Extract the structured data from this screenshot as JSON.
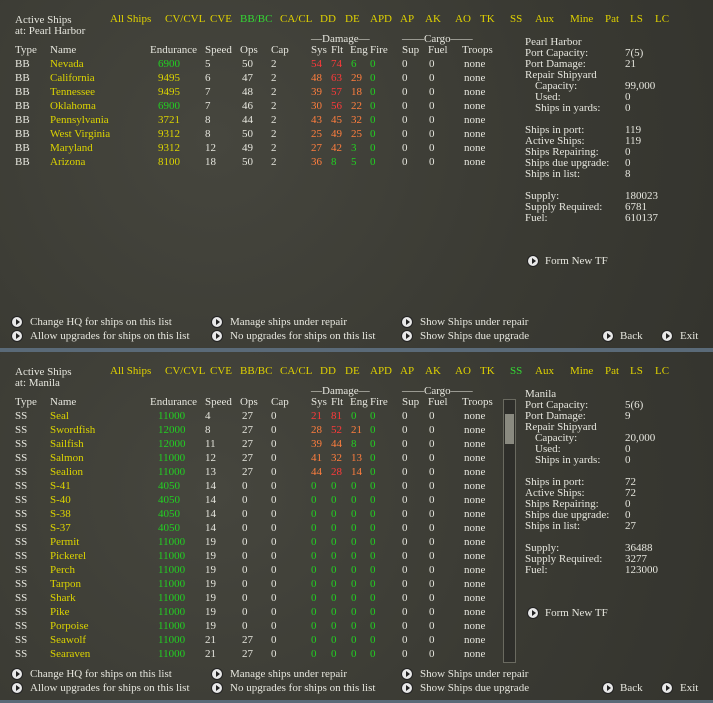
{
  "panels": [
    {
      "title": "Active Ships",
      "location": "at: Pearl Harbor",
      "filters": [
        {
          "label": "All Ships"
        },
        {
          "label": "CV/CVL"
        },
        {
          "label": "CVE"
        },
        {
          "label": "BB/BC",
          "active": true
        },
        {
          "label": "CA/CL"
        },
        {
          "label": "DD"
        },
        {
          "label": "DE"
        },
        {
          "label": "APD"
        },
        {
          "label": "AP"
        },
        {
          "label": "AK"
        },
        {
          "label": "AO"
        },
        {
          "label": "TK"
        },
        {
          "label": "SS"
        },
        {
          "label": "Aux"
        },
        {
          "label": "Mine"
        },
        {
          "label": "Pat"
        },
        {
          "label": "LS"
        },
        {
          "label": "LC"
        }
      ],
      "groups": {
        "damage": "—Damage—",
        "cargo": "——Cargo——"
      },
      "headers": {
        "type": "Type",
        "name": "Name",
        "endurance": "Endurance",
        "speed": "Speed",
        "ops": "Ops",
        "cap": "Cap",
        "sys": "Sys",
        "flt": "Flt",
        "eng": "Eng",
        "fire": "Fire",
        "sup": "Sup",
        "fuel": "Fuel",
        "troops": "Troops"
      },
      "rows": [
        {
          "type": "BB",
          "name": "Nevada",
          "endurance": 6900,
          "speed": 5,
          "ops": 50,
          "cap": 2,
          "sys": 54,
          "flt": 74,
          "eng": 6,
          "fire": 0,
          "sup": 0,
          "fuel": 0,
          "troops": "none",
          "colors": {
            "sys": "r",
            "flt": "r"
          }
        },
        {
          "type": "BB",
          "name": "California",
          "endurance": 9495,
          "speed": 6,
          "ops": 47,
          "cap": 2,
          "sys": 48,
          "flt": 63,
          "eng": 29,
          "fire": 0,
          "sup": 0,
          "fuel": 0,
          "troops": "none",
          "colors": {
            "endurance": "y",
            "sys": "o",
            "flt": "r",
            "eng": "o"
          }
        },
        {
          "type": "BB",
          "name": "Tennessee",
          "endurance": 9495,
          "speed": 7,
          "ops": 48,
          "cap": 2,
          "sys": 39,
          "flt": 57,
          "eng": 18,
          "fire": 0,
          "sup": 0,
          "fuel": 0,
          "troops": "none",
          "colors": {
            "endurance": "y",
            "sys": "o",
            "flt": "r",
            "eng": "o"
          }
        },
        {
          "type": "BB",
          "name": "Oklahoma",
          "endurance": 6900,
          "speed": 7,
          "ops": 46,
          "cap": 2,
          "sys": 30,
          "flt": 56,
          "eng": 22,
          "fire": 0,
          "sup": 0,
          "fuel": 0,
          "troops": "none",
          "colors": {
            "sys": "o",
            "flt": "r",
            "eng": "o"
          }
        },
        {
          "type": "BB",
          "name": "Pennsylvania",
          "endurance": 3721,
          "speed": 8,
          "ops": 44,
          "cap": 2,
          "sys": 43,
          "flt": 45,
          "eng": 32,
          "fire": 0,
          "sup": 0,
          "fuel": 0,
          "troops": "none",
          "colors": {
            "endurance": "y",
            "sys": "o",
            "flt": "o",
            "eng": "o"
          }
        },
        {
          "type": "BB",
          "name": "West Virginia",
          "endurance": 9312,
          "speed": 8,
          "ops": 50,
          "cap": 2,
          "sys": 25,
          "flt": 49,
          "eng": 25,
          "fire": 0,
          "sup": 0,
          "fuel": 0,
          "troops": "none",
          "colors": {
            "endurance": "y",
            "sys": "o",
            "flt": "o",
            "eng": "o"
          }
        },
        {
          "type": "BB",
          "name": "Maryland",
          "endurance": 9312,
          "speed": 12,
          "ops": 49,
          "cap": 2,
          "sys": 27,
          "flt": 42,
          "eng": 3,
          "fire": 0,
          "sup": 0,
          "fuel": 0,
          "troops": "none",
          "colors": {
            "endurance": "y",
            "sys": "o",
            "flt": "o"
          }
        },
        {
          "type": "BB",
          "name": "Arizona",
          "endurance": 8100,
          "speed": 18,
          "ops": 50,
          "cap": 2,
          "sys": 36,
          "flt": 8,
          "eng": 5,
          "fire": 0,
          "sup": 0,
          "fuel": 0,
          "troops": "none",
          "colors": {
            "endurance": "y",
            "sys": "o"
          }
        }
      ],
      "port": "Pearl Harbor",
      "info": [
        [
          {
            "label": "Port Capacity:",
            "value": "7(5)"
          },
          {
            "label": "Port Damage:",
            "value": 21
          },
          {
            "label": "Repair Shipyard"
          },
          {
            "label": "Capacity:",
            "value": "99,000",
            "indent": true
          },
          {
            "label": "Used:",
            "value": 0,
            "indent": true
          },
          {
            "label": "Ships in yards:",
            "value": 0,
            "indent": true
          }
        ],
        [
          {
            "label": "Ships in port:",
            "value": 119
          },
          {
            "label": "Active Ships:",
            "value": 119
          },
          {
            "label": "Ships Repairing:",
            "value": 0
          },
          {
            "label": "Ships due upgrade:",
            "value": 0
          },
          {
            "label": "Ships in list:",
            "value": 8
          }
        ],
        [
          {
            "label": "Supply:",
            "value": 180023
          },
          {
            "label": "Supply Required:",
            "value": 6781
          },
          {
            "label": "Fuel:",
            "value": 610137
          }
        ]
      ],
      "form_tf": "Form New TF",
      "buttons": [
        [
          "Change HQ for ships on this list",
          "Allow upgrades for ships on this list"
        ],
        [
          "Manage ships under repair",
          "No upgrades for ships on this list"
        ],
        [
          "Show Ships under repair",
          "Show Ships due upgrade"
        ]
      ],
      "back": "Back",
      "exit": "Exit"
    },
    {
      "title": "Active Ships",
      "location": "at: Manila",
      "filters": [
        {
          "label": "All Ships"
        },
        {
          "label": "CV/CVL"
        },
        {
          "label": "CVE"
        },
        {
          "label": "BB/BC"
        },
        {
          "label": "CA/CL"
        },
        {
          "label": "DD"
        },
        {
          "label": "DE"
        },
        {
          "label": "APD"
        },
        {
          "label": "AP"
        },
        {
          "label": "AK"
        },
        {
          "label": "AO"
        },
        {
          "label": "TK"
        },
        {
          "label": "SS",
          "active": true
        },
        {
          "label": "Aux"
        },
        {
          "label": "Mine"
        },
        {
          "label": "Pat"
        },
        {
          "label": "LS"
        },
        {
          "label": "LC"
        }
      ],
      "groups": {
        "damage": "—Damage—",
        "cargo": "——Cargo——"
      },
      "headers": {
        "type": "Type",
        "name": "Name",
        "endurance": "Endurance",
        "speed": "Speed",
        "ops": "Ops",
        "cap": "Cap",
        "sys": "Sys",
        "flt": "Flt",
        "eng": "Eng",
        "fire": "Fire",
        "sup": "Sup",
        "fuel": "Fuel",
        "troops": "Troops"
      },
      "rows": [
        {
          "type": "SS",
          "name": "Seal",
          "endurance": 11000,
          "speed": 4,
          "ops": 27,
          "cap": 0,
          "sys": 21,
          "flt": 81,
          "eng": 0,
          "fire": 0,
          "sup": 0,
          "fuel": 0,
          "troops": "none",
          "colors": {
            "sys": "r",
            "flt": "r"
          }
        },
        {
          "type": "SS",
          "name": "Swordfish",
          "endurance": 12000,
          "speed": 8,
          "ops": 27,
          "cap": 0,
          "sys": 28,
          "flt": 52,
          "eng": 21,
          "fire": 0,
          "sup": 0,
          "fuel": 0,
          "troops": "none",
          "colors": {
            "sys": "o",
            "flt": "r",
            "eng": "o"
          }
        },
        {
          "type": "SS",
          "name": "Sailfish",
          "endurance": 12000,
          "speed": 11,
          "ops": 27,
          "cap": 0,
          "sys": 39,
          "flt": 44,
          "eng": 8,
          "fire": 0,
          "sup": 0,
          "fuel": 0,
          "troops": "none",
          "colors": {
            "sys": "o",
            "flt": "o"
          }
        },
        {
          "type": "SS",
          "name": "Salmon",
          "endurance": 11000,
          "speed": 12,
          "ops": 27,
          "cap": 0,
          "sys": 41,
          "flt": 32,
          "eng": 13,
          "fire": 0,
          "sup": 0,
          "fuel": 0,
          "troops": "none",
          "colors": {
            "sys": "o",
            "flt": "o",
            "eng": "o"
          }
        },
        {
          "type": "SS",
          "name": "Sealion",
          "endurance": 11000,
          "speed": 13,
          "ops": 27,
          "cap": 0,
          "sys": 44,
          "flt": 28,
          "eng": 14,
          "fire": 0,
          "sup": 0,
          "fuel": 0,
          "troops": "none",
          "colors": {
            "sys": "o",
            "flt": "r",
            "eng": "o"
          }
        },
        {
          "type": "SS",
          "name": "S-41",
          "endurance": 4050,
          "speed": 14,
          "ops": 0,
          "cap": 0,
          "sys": 0,
          "flt": 0,
          "eng": 0,
          "fire": 0,
          "sup": 0,
          "fuel": 0,
          "troops": "none"
        },
        {
          "type": "SS",
          "name": "S-40",
          "endurance": 4050,
          "speed": 14,
          "ops": 0,
          "cap": 0,
          "sys": 0,
          "flt": 0,
          "eng": 0,
          "fire": 0,
          "sup": 0,
          "fuel": 0,
          "troops": "none"
        },
        {
          "type": "SS",
          "name": "S-38",
          "endurance": 4050,
          "speed": 14,
          "ops": 0,
          "cap": 0,
          "sys": 0,
          "flt": 0,
          "eng": 0,
          "fire": 0,
          "sup": 0,
          "fuel": 0,
          "troops": "none"
        },
        {
          "type": "SS",
          "name": "S-37",
          "endurance": 4050,
          "speed": 14,
          "ops": 0,
          "cap": 0,
          "sys": 0,
          "flt": 0,
          "eng": 0,
          "fire": 0,
          "sup": 0,
          "fuel": 0,
          "troops": "none"
        },
        {
          "type": "SS",
          "name": "Permit",
          "endurance": 11000,
          "speed": 19,
          "ops": 0,
          "cap": 0,
          "sys": 0,
          "flt": 0,
          "eng": 0,
          "fire": 0,
          "sup": 0,
          "fuel": 0,
          "troops": "none"
        },
        {
          "type": "SS",
          "name": "Pickerel",
          "endurance": 11000,
          "speed": 19,
          "ops": 0,
          "cap": 0,
          "sys": 0,
          "flt": 0,
          "eng": 0,
          "fire": 0,
          "sup": 0,
          "fuel": 0,
          "troops": "none"
        },
        {
          "type": "SS",
          "name": "Perch",
          "endurance": 11000,
          "speed": 19,
          "ops": 0,
          "cap": 0,
          "sys": 0,
          "flt": 0,
          "eng": 0,
          "fire": 0,
          "sup": 0,
          "fuel": 0,
          "troops": "none"
        },
        {
          "type": "SS",
          "name": "Tarpon",
          "endurance": 11000,
          "speed": 19,
          "ops": 0,
          "cap": 0,
          "sys": 0,
          "flt": 0,
          "eng": 0,
          "fire": 0,
          "sup": 0,
          "fuel": 0,
          "troops": "none"
        },
        {
          "type": "SS",
          "name": "Shark",
          "endurance": 11000,
          "speed": 19,
          "ops": 0,
          "cap": 0,
          "sys": 0,
          "flt": 0,
          "eng": 0,
          "fire": 0,
          "sup": 0,
          "fuel": 0,
          "troops": "none"
        },
        {
          "type": "SS",
          "name": "Pike",
          "endurance": 11000,
          "speed": 19,
          "ops": 0,
          "cap": 0,
          "sys": 0,
          "flt": 0,
          "eng": 0,
          "fire": 0,
          "sup": 0,
          "fuel": 0,
          "troops": "none"
        },
        {
          "type": "SS",
          "name": "Porpoise",
          "endurance": 11000,
          "speed": 19,
          "ops": 0,
          "cap": 0,
          "sys": 0,
          "flt": 0,
          "eng": 0,
          "fire": 0,
          "sup": 0,
          "fuel": 0,
          "troops": "none"
        },
        {
          "type": "SS",
          "name": "Seawolf",
          "endurance": 11000,
          "speed": 21,
          "ops": 27,
          "cap": 0,
          "sys": 0,
          "flt": 0,
          "eng": 0,
          "fire": 0,
          "sup": 0,
          "fuel": 0,
          "troops": "none"
        },
        {
          "type": "SS",
          "name": "Searaven",
          "endurance": 11000,
          "speed": 21,
          "ops": 27,
          "cap": 0,
          "sys": 0,
          "flt": 0,
          "eng": 0,
          "fire": 0,
          "sup": 0,
          "fuel": 0,
          "troops": "none"
        }
      ],
      "port": "Manila",
      "info": [
        [
          {
            "label": "Port Capacity:",
            "value": "5(6)"
          },
          {
            "label": "Port Damage:",
            "value": 9
          },
          {
            "label": "Repair Shipyard"
          },
          {
            "label": "Capacity:",
            "value": "20,000",
            "indent": true
          },
          {
            "label": "Used:",
            "value": 0,
            "indent": true
          },
          {
            "label": "Ships in yards:",
            "value": 0,
            "indent": true
          }
        ],
        [
          {
            "label": "Ships in port:",
            "value": 72
          },
          {
            "label": "Active Ships:",
            "value": 72
          },
          {
            "label": "Ships Repairing:",
            "value": 0
          },
          {
            "label": "Ships due upgrade:",
            "value": 0
          },
          {
            "label": "Ships in list:",
            "value": 27
          }
        ],
        [
          {
            "label": "Supply:",
            "value": 36488
          },
          {
            "label": "Supply Required:",
            "value": 3277
          },
          {
            "label": "Fuel:",
            "value": 123000
          }
        ]
      ],
      "form_tf": "Form New TF",
      "buttons": [
        [
          "Change HQ for ships on this list",
          "Allow upgrades for ships on this list"
        ],
        [
          "Manage ships under repair",
          "No upgrades for ships on this list"
        ],
        [
          "Show Ships under repair",
          "Show Ships due upgrade"
        ]
      ],
      "back": "Back",
      "exit": "Exit"
    }
  ],
  "palette": {
    "y": "#dcd400",
    "g": "#22d022",
    "r": "#ff3a3a",
    "o": "#ff7e3e",
    "w": "#e6e6de",
    "active": "#34d834",
    "filter": "#e0d200"
  }
}
